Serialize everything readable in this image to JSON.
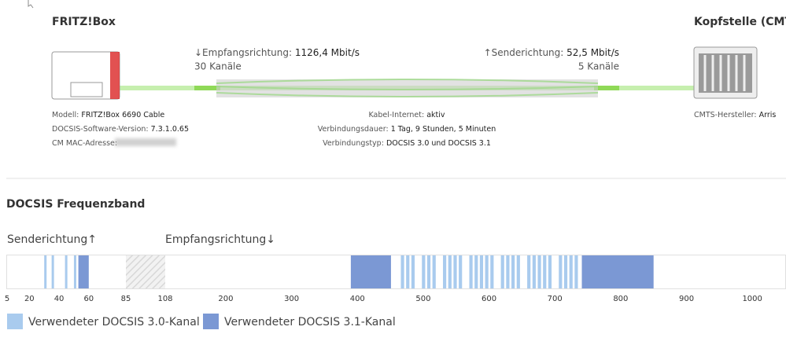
{
  "header": {
    "device_title": "FRITZ!Box",
    "cmts_title": "Kopfstelle (CMTS)"
  },
  "downstream": {
    "label": "↓Empfangsrichtung:",
    "rate": "1126,4 Mbit/s",
    "channels": "30 Kanäle"
  },
  "upstream": {
    "label": "↑Senderichtung:",
    "rate": "52,5 Mbit/s",
    "channels": "5 Kanäle"
  },
  "device_info": [
    {
      "label": "Modell:",
      "value": "FRITZ!Box 6690 Cable"
    },
    {
      "label": "DOCSIS-Software-Version:",
      "value": "7.3.1.0.65"
    },
    {
      "label": "CM MAC-Adresse:"
    }
  ],
  "connection_info": [
    {
      "label": "Kabel-Internet:",
      "value": "aktiv"
    },
    {
      "label": "Verbindungsdauer:",
      "value": "1 Tag, 9 Stunden, 5 Minuten"
    },
    {
      "label": "Verbindungstyp:",
      "value": "DOCSIS 3.0 und DOCSIS 3.1"
    }
  ],
  "cmts_info": {
    "label": "CMTS-Hersteller:",
    "value": "Arris"
  },
  "chart_data": {
    "type": "frequency-band",
    "title": "DOCSIS Frequenzband",
    "upstream_label": "Senderichtung↑",
    "downstream_label": "Empfangsrichtung↓",
    "xlim": [
      5,
      1050
    ],
    "xticks": [
      5,
      20,
      40,
      60,
      85,
      108,
      200,
      300,
      400,
      500,
      600,
      700,
      800,
      900,
      1000
    ],
    "guard_band": [
      85,
      108
    ],
    "series": [
      {
        "name": "Verwendeter DOCSIS 3.0-Kanal",
        "color": "#a9cbee",
        "values": [
          [
            30,
            31.6
          ],
          [
            35,
            36.6
          ],
          [
            44,
            45.6
          ],
          [
            50,
            51.6
          ],
          [
            466,
            471
          ],
          [
            474,
            479
          ],
          [
            482,
            487
          ],
          [
            498,
            503
          ],
          [
            506,
            511
          ],
          [
            514,
            519
          ],
          [
            530,
            535
          ],
          [
            538,
            543
          ],
          [
            546,
            551
          ],
          [
            554,
            559
          ],
          [
            570,
            575
          ],
          [
            578,
            583
          ],
          [
            586,
            591
          ],
          [
            594,
            599
          ],
          [
            602,
            607
          ],
          [
            618,
            623
          ],
          [
            626,
            631
          ],
          [
            634,
            639
          ],
          [
            642,
            647
          ],
          [
            658,
            663
          ],
          [
            666,
            671
          ],
          [
            674,
            679
          ],
          [
            682,
            687
          ],
          [
            690,
            695
          ],
          [
            706,
            711
          ],
          [
            714,
            719
          ],
          [
            722,
            727
          ],
          [
            730,
            735
          ]
        ]
      },
      {
        "name": "Verwendeter DOCSIS 3.1-Kanal",
        "color": "#7b98d4",
        "values": [
          [
            53,
            60
          ],
          [
            390,
            451
          ],
          [
            741,
            850
          ]
        ]
      }
    ]
  }
}
